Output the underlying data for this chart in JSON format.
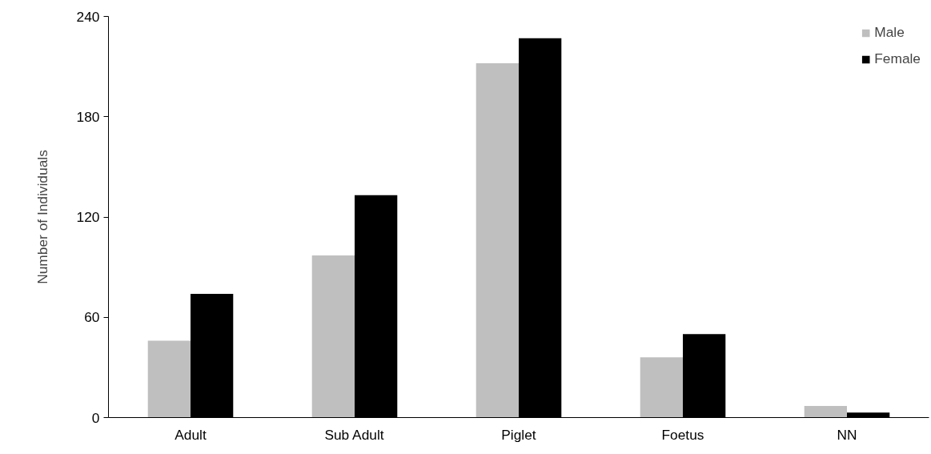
{
  "chart_data": {
    "type": "bar",
    "ylabel": "Number of Individuals",
    "categories": [
      "Adult",
      "Sub Adult",
      "Piglet",
      "Foetus",
      "NN"
    ],
    "series": [
      {
        "name": "Male",
        "color": "#bfbfbf",
        "values": [
          46,
          97,
          212,
          36,
          7
        ]
      },
      {
        "name": "Female",
        "color": "#000000",
        "values": [
          74,
          133,
          227,
          50,
          3
        ]
      }
    ],
    "ylim": [
      0,
      240
    ],
    "yticks": [
      0,
      60,
      120,
      180,
      240
    ],
    "grid": false,
    "legend": "top right"
  }
}
